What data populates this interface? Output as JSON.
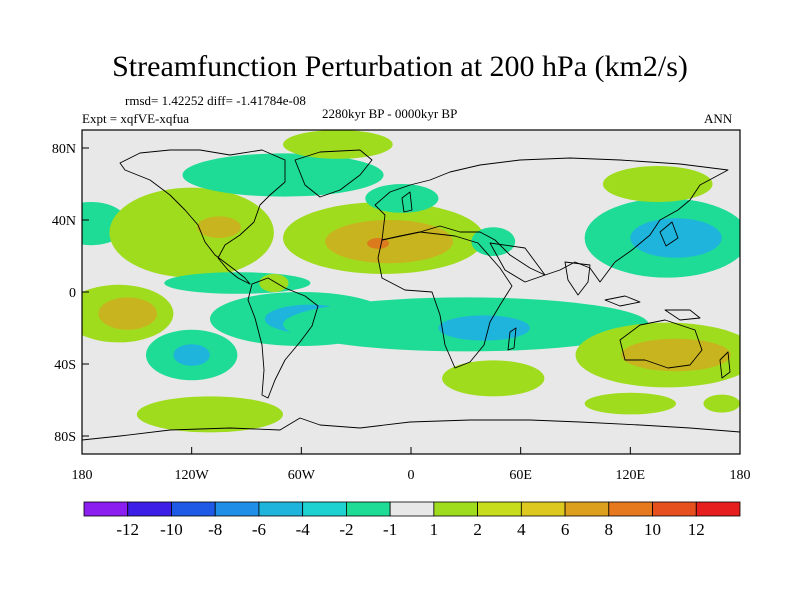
{
  "title": "Streamfunction Perturbation at 200 hPa (km2/s)",
  "stats": "rmsd= 1.42252 diff= -1.41784e-08",
  "experiment": "Expt = xqfVE-xqfua",
  "period": "2280kyr BP - 0000kyr BP",
  "season": "ANN",
  "lat_labels": [
    "80N",
    "40N",
    "0",
    "40S",
    "80S"
  ],
  "lon_labels": [
    "180",
    "120W",
    "60W",
    "0",
    "60E",
    "120E",
    "180"
  ],
  "colorbar": {
    "colors": [
      "#8a1ff0",
      "#3c1ee6",
      "#1e5ae6",
      "#1e8ee6",
      "#1eb4dc",
      "#1ed2d2",
      "#1edc96",
      "#e8e8e8",
      "#a0dc1e",
      "#c8dc1e",
      "#dcc81e",
      "#dca01e",
      "#e6781e",
      "#e6501e",
      "#e61e1e"
    ],
    "labels": [
      "-12",
      "-10",
      "-8",
      "-6",
      "-4",
      "-2",
      "-1",
      "1",
      "2",
      "4",
      "6",
      "8",
      "10",
      "12"
    ]
  },
  "chart_data": {
    "type": "heatmap",
    "variable": "streamfunction perturbation",
    "units": "km2/s",
    "levels": [
      -12,
      -10,
      -8,
      -6,
      -4,
      -2,
      -1,
      1,
      2,
      4,
      6,
      8,
      10,
      12
    ],
    "background_level": [
      -1,
      1
    ],
    "features": [
      {
        "lon": -175,
        "lat": 38,
        "rx": 20,
        "ry": 12,
        "level": "-2"
      },
      {
        "lon": -120,
        "lat": 33,
        "rx": 45,
        "ry": 25,
        "level": "2"
      },
      {
        "lon": -105,
        "lat": 36,
        "rx": 12,
        "ry": 6,
        "level": "4"
      },
      {
        "lon": -95,
        "lat": 5,
        "rx": 40,
        "ry": 6,
        "level": "-2"
      },
      {
        "lon": -75,
        "lat": 5,
        "rx": 8,
        "ry": 5,
        "level": "2"
      },
      {
        "lon": -70,
        "lat": 65,
        "rx": 55,
        "ry": 12,
        "level": "-2"
      },
      {
        "lon": -40,
        "lat": 82,
        "rx": 30,
        "ry": 8,
        "level": "2"
      },
      {
        "lon": -15,
        "lat": 30,
        "rx": 55,
        "ry": 20,
        "level": "2"
      },
      {
        "lon": -12,
        "lat": 28,
        "rx": 35,
        "ry": 12,
        "level": "4"
      },
      {
        "lon": -18,
        "lat": 27,
        "rx": 6,
        "ry": 3,
        "level": "6"
      },
      {
        "lon": -5,
        "lat": 52,
        "rx": 20,
        "ry": 8,
        "level": "-2"
      },
      {
        "lon": -160,
        "lat": -12,
        "rx": 30,
        "ry": 16,
        "level": "2"
      },
      {
        "lon": -155,
        "lat": -12,
        "rx": 16,
        "ry": 9,
        "level": "4"
      },
      {
        "lon": -120,
        "lat": -35,
        "rx": 25,
        "ry": 14,
        "level": "-2"
      },
      {
        "lon": -120,
        "lat": -35,
        "rx": 10,
        "ry": 6,
        "level": "-4"
      },
      {
        "lon": -60,
        "lat": -15,
        "rx": 50,
        "ry": 15,
        "level": "-2"
      },
      {
        "lon": -55,
        "lat": -15,
        "rx": 25,
        "ry": 8,
        "level": "-4"
      },
      {
        "lon": 30,
        "lat": -18,
        "rx": 100,
        "ry": 15,
        "level": "-2"
      },
      {
        "lon": 40,
        "lat": -20,
        "rx": 25,
        "ry": 7,
        "level": "-4"
      },
      {
        "lon": -110,
        "lat": -68,
        "rx": 40,
        "ry": 10,
        "level": "2"
      },
      {
        "lon": 45,
        "lat": -48,
        "rx": 28,
        "ry": 10,
        "level": "2"
      },
      {
        "lon": 140,
        "lat": -35,
        "rx": 50,
        "ry": 18,
        "level": "2"
      },
      {
        "lon": 145,
        "lat": -35,
        "rx": 30,
        "ry": 9,
        "level": "4"
      },
      {
        "lon": 120,
        "lat": -62,
        "rx": 25,
        "ry": 6,
        "level": "2"
      },
      {
        "lon": 170,
        "lat": -62,
        "rx": 10,
        "ry": 5,
        "level": "2"
      },
      {
        "lon": 140,
        "lat": 30,
        "rx": 45,
        "ry": 22,
        "level": "-2"
      },
      {
        "lon": 145,
        "lat": 30,
        "rx": 25,
        "ry": 11,
        "level": "-4"
      },
      {
        "lon": 135,
        "lat": 60,
        "rx": 30,
        "ry": 10,
        "level": "2"
      },
      {
        "lon": 45,
        "lat": 28,
        "rx": 12,
        "ry": 8,
        "level": "-2"
      }
    ]
  }
}
